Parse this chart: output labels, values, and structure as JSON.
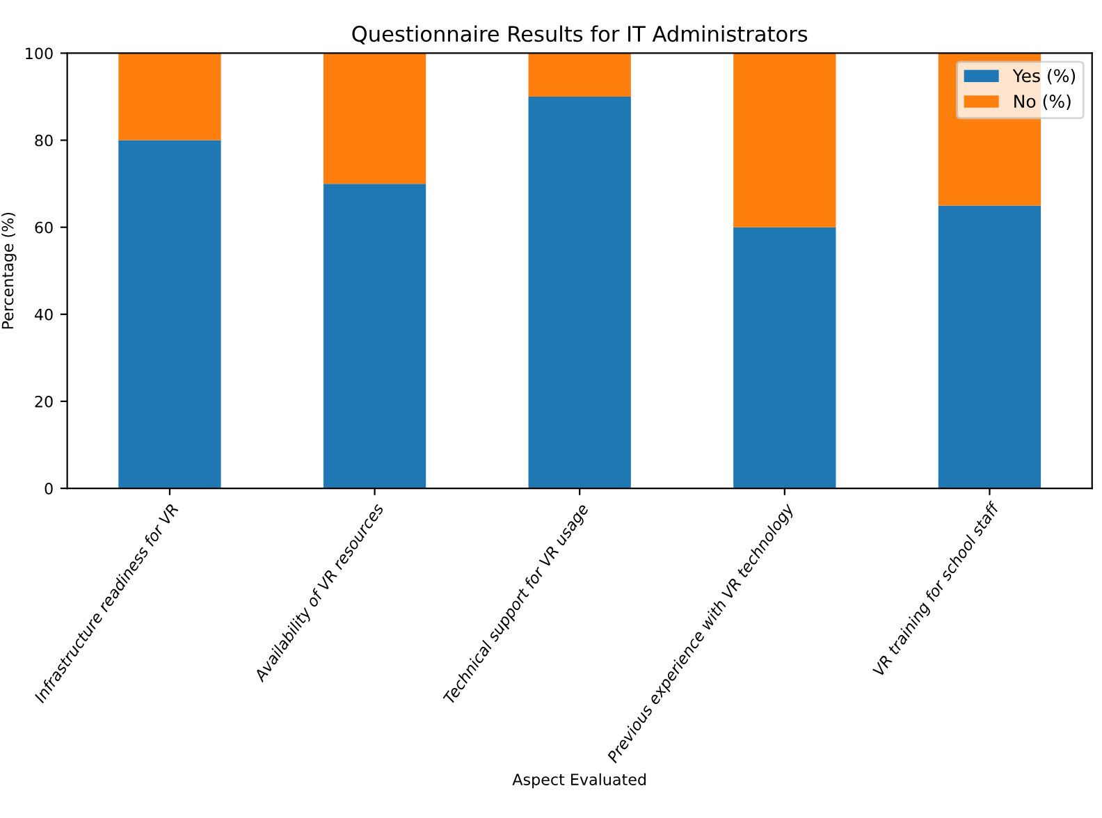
{
  "chart_data": {
    "type": "bar",
    "title": "Questionnaire Results for IT Administrators",
    "xlabel": "Aspect Evaluated",
    "ylabel": "Percentage (%)",
    "categories": [
      "Infrastructure readiness for VR",
      "Availability of VR resources",
      "Technical support for VR usage",
      "Previous experience with VR technology",
      "VR training for school staff"
    ],
    "series": [
      {
        "name": "Yes (%)",
        "color": "#1f77b4",
        "values": [
          80,
          70,
          90,
          60,
          65
        ]
      },
      {
        "name": "No (%)",
        "color": "#ff7f0e",
        "values": [
          20,
          30,
          10,
          40,
          35
        ]
      }
    ],
    "stacked": true,
    "ylim": [
      0,
      100
    ],
    "yticks": [
      0,
      20,
      40,
      60,
      80,
      100
    ],
    "legend": "top right",
    "grid": false
  }
}
